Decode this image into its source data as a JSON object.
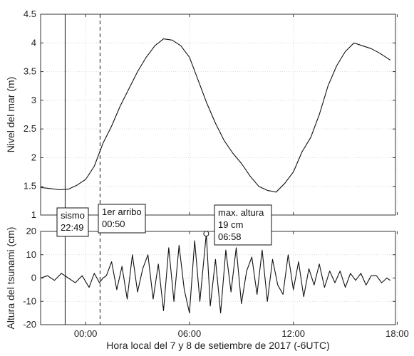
{
  "chart_data": [
    {
      "id": "sea-level",
      "type": "line",
      "ylabel": "Nivel del mar (m)",
      "ylim": [
        1,
        4.5
      ],
      "yticks": [
        1,
        1.5,
        2,
        2.5,
        3,
        3.5,
        4,
        4.5
      ],
      "xlim_hours": [
        -2.6,
        17.9
      ],
      "grid": "on",
      "series": [
        {
          "x": [
            -2.6,
            -2.0,
            -1.5,
            -1.0,
            -0.5,
            0.0,
            0.5,
            1.0,
            1.5,
            2.0,
            2.5,
            3.0,
            3.5,
            4.0,
            4.5,
            5.0,
            5.5,
            6.0,
            6.5,
            7.0,
            7.5,
            8.0,
            8.5,
            9.0,
            9.5,
            10.0,
            10.5,
            11.0,
            11.5,
            12.0,
            12.5,
            13.0,
            13.5,
            14.0,
            14.5,
            15.0,
            15.5,
            16.0,
            16.5,
            17.0,
            17.5,
            17.6
          ],
          "values": [
            1.48,
            1.46,
            1.44,
            1.45,
            1.52,
            1.62,
            1.85,
            2.25,
            2.55,
            2.9,
            3.2,
            3.5,
            3.75,
            3.95,
            4.07,
            4.05,
            3.95,
            3.75,
            3.35,
            2.95,
            2.6,
            2.3,
            2.08,
            1.9,
            1.68,
            1.5,
            1.43,
            1.4,
            1.55,
            1.75,
            2.1,
            2.35,
            2.75,
            3.25,
            3.6,
            3.85,
            4.0,
            3.95,
            3.9,
            3.82,
            3.72,
            3.7
          ]
        }
      ]
    },
    {
      "id": "tsunami",
      "type": "line",
      "xlabel": "Hora local del 7 y 8 de setiembre de 2017 (-6UTC)",
      "ylabel": "Altura del tsunami (cm)",
      "ylim": [
        -20,
        20
      ],
      "yticks": [
        -20,
        -10,
        0,
        10,
        20
      ],
      "xlim_hours": [
        -2.6,
        17.9
      ],
      "xticks": [
        0,
        6,
        12,
        18
      ],
      "xtick_labels": [
        "00:00",
        "06:00",
        "12:00",
        "18:00"
      ],
      "grid": "on",
      "series": [
        {
          "x": [
            -2.6,
            -2.2,
            -1.8,
            -1.4,
            -1.0,
            -0.6,
            -0.2,
            0.2,
            0.5,
            0.8,
            1.0,
            1.2,
            1.5,
            1.8,
            2.1,
            2.4,
            2.7,
            3.0,
            3.3,
            3.6,
            3.9,
            4.2,
            4.5,
            4.8,
            5.1,
            5.4,
            5.7,
            6.0,
            6.3,
            6.6,
            6.97,
            7.2,
            7.5,
            7.8,
            8.1,
            8.4,
            8.7,
            9.0,
            9.3,
            9.6,
            9.9,
            10.2,
            10.5,
            10.8,
            11.1,
            11.4,
            11.7,
            12.0,
            12.3,
            12.6,
            12.9,
            13.2,
            13.5,
            13.8,
            14.1,
            14.4,
            14.7,
            15.0,
            15.3,
            15.6,
            15.9,
            16.2,
            16.5,
            16.8,
            17.1,
            17.4,
            17.6
          ],
          "values": [
            0,
            1,
            -1,
            2,
            0,
            -2,
            1,
            -4,
            2,
            -2,
            0,
            1,
            7,
            -5,
            5,
            -9,
            10,
            -6,
            4,
            10,
            -9,
            6,
            -14,
            13,
            -10,
            14,
            -5,
            -15,
            16,
            -10,
            19,
            -12,
            8,
            -15,
            12,
            -6,
            13,
            -11,
            3,
            9,
            -7,
            12,
            -10,
            8,
            -3,
            -7,
            10,
            -5,
            7,
            -8,
            4,
            -3,
            6,
            -4,
            3,
            -2,
            3,
            -4,
            2,
            -1,
            2,
            -3,
            1,
            1,
            -2,
            0,
            -1
          ]
        }
      ],
      "annotations": [
        {
          "label": "sismo",
          "time": "22:49"
        },
        {
          "label": "1er arribo",
          "time": "00:50"
        },
        {
          "label": "max. altura",
          "value": "19 cm",
          "time": "06:58"
        }
      ]
    }
  ],
  "event_lines_hours": {
    "sismo": -1.183,
    "primer_arribo": 0.833,
    "max_altura": 6.967
  },
  "colors": {
    "line": "#111111",
    "grid": "#d9d9d9",
    "axis": "#333333"
  }
}
